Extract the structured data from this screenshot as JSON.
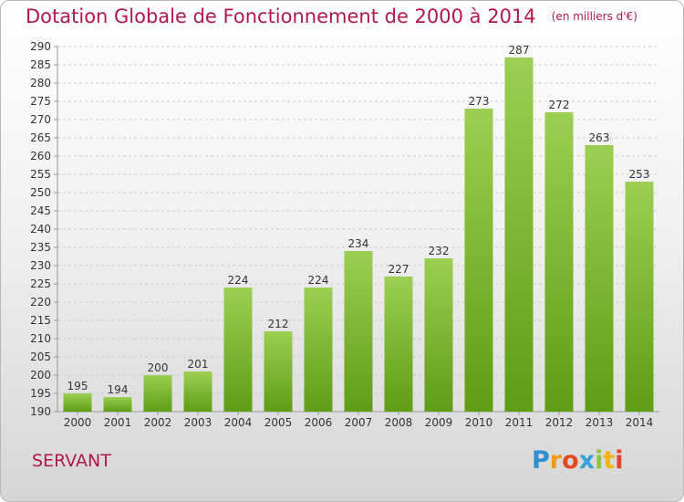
{
  "title": "Dotation Globale de Fonctionnement de 2000 à 2014",
  "subtitle": "(en milliers d'€)",
  "town": "SERVANT",
  "logo": {
    "text": "Proxiti",
    "letters": [
      {
        "ch": "P",
        "color": "#2f8fd1"
      },
      {
        "ch": "r",
        "color": "#f39a1b"
      },
      {
        "ch": "o",
        "color": "#e04b22"
      },
      {
        "ch": "x",
        "color": "#3aa0d8"
      },
      {
        "ch": "i",
        "color": "#8cc63e"
      },
      {
        "ch": "t",
        "color": "#f2b315"
      },
      {
        "ch": "i",
        "color": "#e0432a"
      }
    ]
  },
  "colors": {
    "title": "#b0184c",
    "bar_light": "#9ccf52",
    "bar_dark": "#5e9d14",
    "grid": "#cccccc"
  },
  "chart_data": {
    "type": "bar",
    "title": "Dotation Globale de Fonctionnement de 2000 à 2014",
    "subtitle": "(en milliers d'€)",
    "xlabel": "",
    "ylabel": "",
    "categories": [
      "2000",
      "2001",
      "2002",
      "2003",
      "2004",
      "2005",
      "2006",
      "2007",
      "2008",
      "2009",
      "2010",
      "2011",
      "2012",
      "2013",
      "2014"
    ],
    "values": [
      195,
      194,
      200,
      201,
      224,
      212,
      224,
      234,
      227,
      232,
      273,
      287,
      272,
      263,
      253
    ],
    "ylim": [
      190,
      290
    ],
    "yticks": [
      190,
      195,
      200,
      205,
      210,
      215,
      220,
      225,
      230,
      235,
      240,
      245,
      250,
      255,
      260,
      265,
      270,
      275,
      280,
      285,
      290
    ],
    "grid": true,
    "legend": "none"
  }
}
